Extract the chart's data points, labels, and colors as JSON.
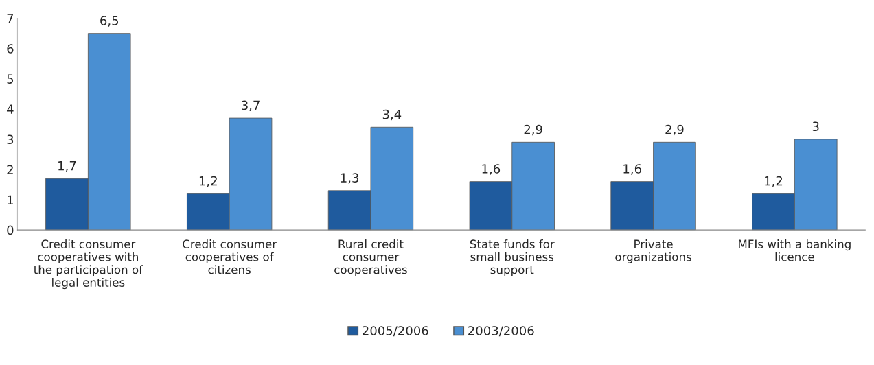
{
  "chart_data": {
    "type": "bar",
    "categories": [
      "Credit consumer\ncooperatives with\nthe participation of\nlegal entities",
      "Credit consumer\ncooperatives of\ncitizens",
      "Rural credit\nconsumer\ncooperatives",
      "State funds for\nsmall business\nsupport",
      "Private\norganizations",
      "MFIs with a banking\nlicence"
    ],
    "series": [
      {
        "name": "2005/2006",
        "color": "#1f5b9e",
        "values": [
          1.7,
          1.2,
          1.3,
          1.6,
          1.6,
          1.2
        ],
        "value_labels": [
          "1,7",
          "1,2",
          "1,3",
          "1,6",
          "1,6",
          "1,2"
        ]
      },
      {
        "name": "2003/2006",
        "color": "#4a8fd2",
        "values": [
          6.5,
          3.7,
          3.4,
          2.9,
          2.9,
          3
        ],
        "value_labels": [
          "6,5",
          "3,7",
          "3,4",
          "2,9",
          "2,9",
          "3"
        ]
      }
    ],
    "ylim": [
      0,
      7
    ],
    "yticks": [
      0,
      1,
      2,
      3,
      4,
      5,
      6,
      7
    ],
    "grid": false,
    "legend": "bottom"
  }
}
